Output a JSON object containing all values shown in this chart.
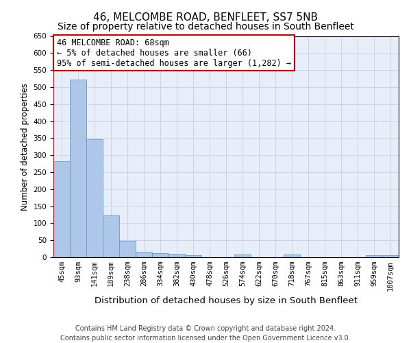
{
  "title": "46, MELCOMBE ROAD, BENFLEET, SS7 5NB",
  "subtitle": "Size of property relative to detached houses in South Benfleet",
  "xlabel": "Distribution of detached houses by size in South Benfleet",
  "ylabel": "Number of detached properties",
  "categories": [
    "45sqm",
    "93sqm",
    "141sqm",
    "189sqm",
    "238sqm",
    "286sqm",
    "334sqm",
    "382sqm",
    "430sqm",
    "478sqm",
    "526sqm",
    "574sqm",
    "622sqm",
    "670sqm",
    "718sqm",
    "767sqm",
    "815sqm",
    "863sqm",
    "911sqm",
    "959sqm",
    "1007sqm"
  ],
  "values": [
    283,
    523,
    347,
    123,
    48,
    17,
    12,
    11,
    7,
    0,
    0,
    8,
    0,
    0,
    8,
    0,
    0,
    0,
    0,
    6,
    6
  ],
  "bar_color": "#aec6e8",
  "bar_edge_color": "#5a9fd4",
  "ylim": [
    0,
    650
  ],
  "yticks": [
    0,
    50,
    100,
    150,
    200,
    250,
    300,
    350,
    400,
    450,
    500,
    550,
    600,
    650
  ],
  "annotation_line1": "46 MELCOMBE ROAD: 68sqm",
  "annotation_line2": "← 5% of detached houses are smaller (66)",
  "annotation_line3": "95% of semi-detached houses are larger (1,282) →",
  "annotation_box_color": "#ffffff",
  "annotation_box_edge_color": "#cc0000",
  "property_line_color": "#cc0000",
  "footer_line1": "Contains HM Land Registry data © Crown copyright and database right 2024.",
  "footer_line2": "Contains public sector information licensed under the Open Government Licence v3.0.",
  "background_color": "#ffffff",
  "plot_bg_color": "#e8eef8",
  "grid_color": "#c8d4e8",
  "title_fontsize": 11,
  "subtitle_fontsize": 10,
  "xlabel_fontsize": 9.5,
  "ylabel_fontsize": 8.5,
  "tick_fontsize": 7.5,
  "annotation_fontsize": 8.5,
  "footer_fontsize": 7
}
